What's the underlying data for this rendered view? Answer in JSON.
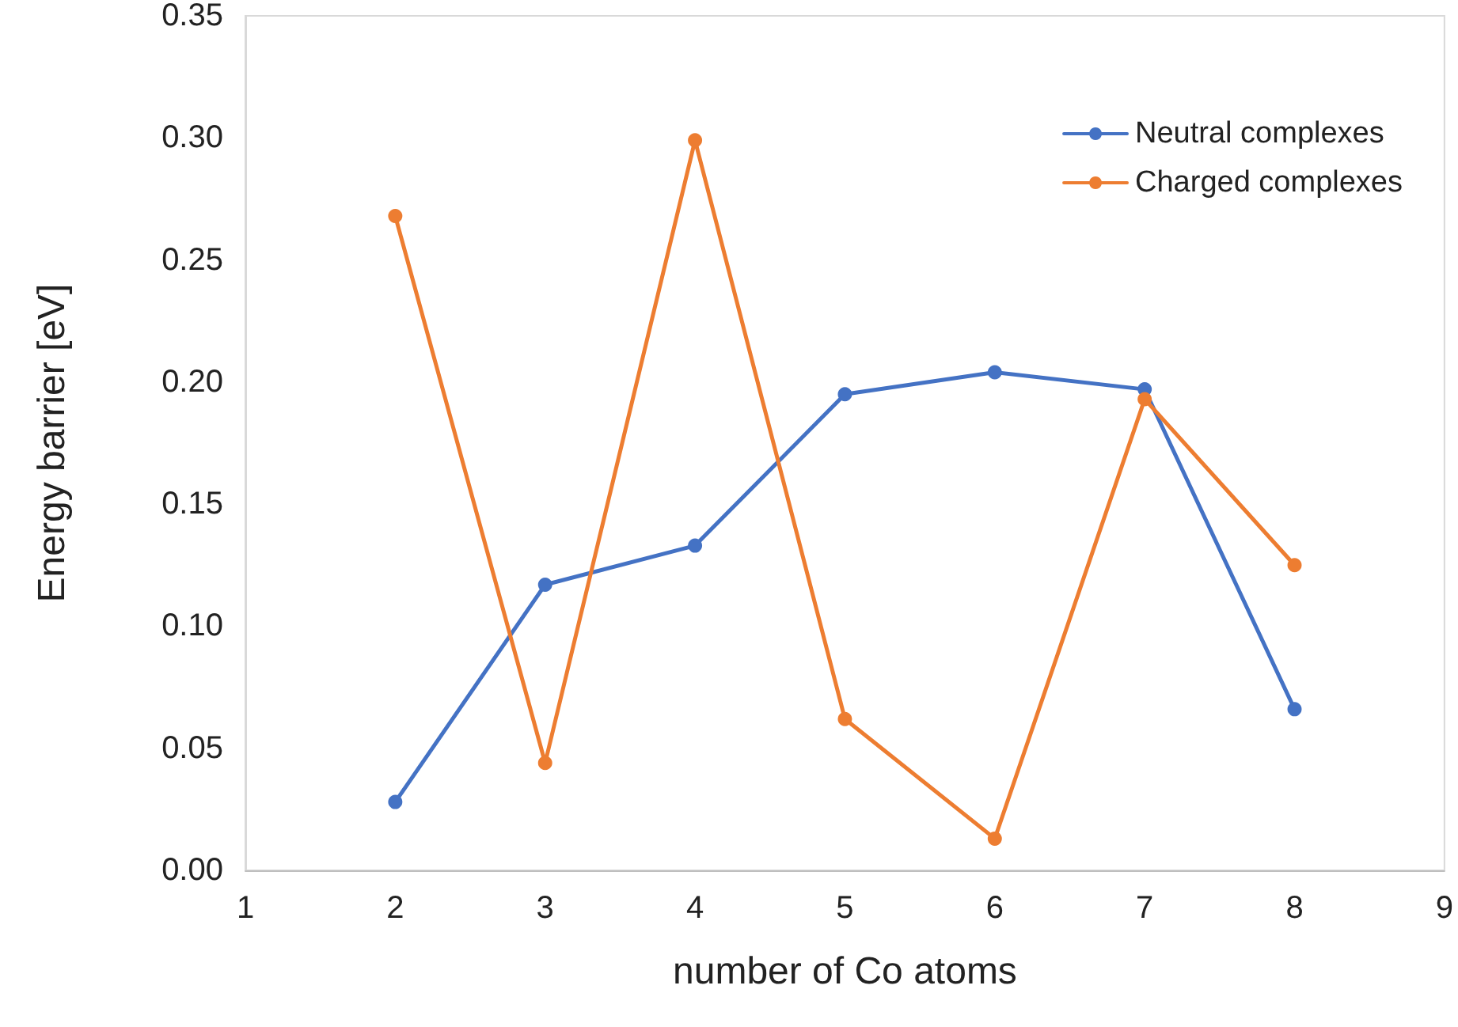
{
  "chart_data": {
    "type": "line",
    "xlabel": "number of Co atoms",
    "ylabel": "Energy barrier [eV]",
    "xlim": [
      1,
      9
    ],
    "xticks": [
      1,
      2,
      3,
      4,
      5,
      6,
      7,
      8,
      9
    ],
    "ylim": [
      0,
      0.35
    ],
    "yticks": [
      {
        "value": 0,
        "label": "0.00"
      },
      {
        "value": 0.05,
        "label": "0.05"
      },
      {
        "value": 0.1,
        "label": "0.10"
      },
      {
        "value": 0.15,
        "label": "0.15"
      },
      {
        "value": 0.2,
        "label": "0.20"
      },
      {
        "value": 0.25,
        "label": "0.25"
      },
      {
        "value": 0.3,
        "label": "0.30"
      },
      {
        "value": 0.35,
        "label": "0.35"
      }
    ],
    "x": [
      2,
      3,
      4,
      5,
      6,
      7,
      8
    ],
    "series": [
      {
        "name": "Neutral complexes",
        "color": "#4472c4",
        "values": [
          0.028,
          0.117,
          0.133,
          0.195,
          0.204,
          0.197,
          0.066
        ]
      },
      {
        "name": "Charged complexes",
        "color": "#ed7d31",
        "values": [
          0.268,
          0.044,
          0.299,
          0.062,
          0.013,
          0.193,
          0.125
        ]
      }
    ],
    "grid": false,
    "legend": "top right",
    "marker": "circle",
    "line_style": "solid"
  }
}
